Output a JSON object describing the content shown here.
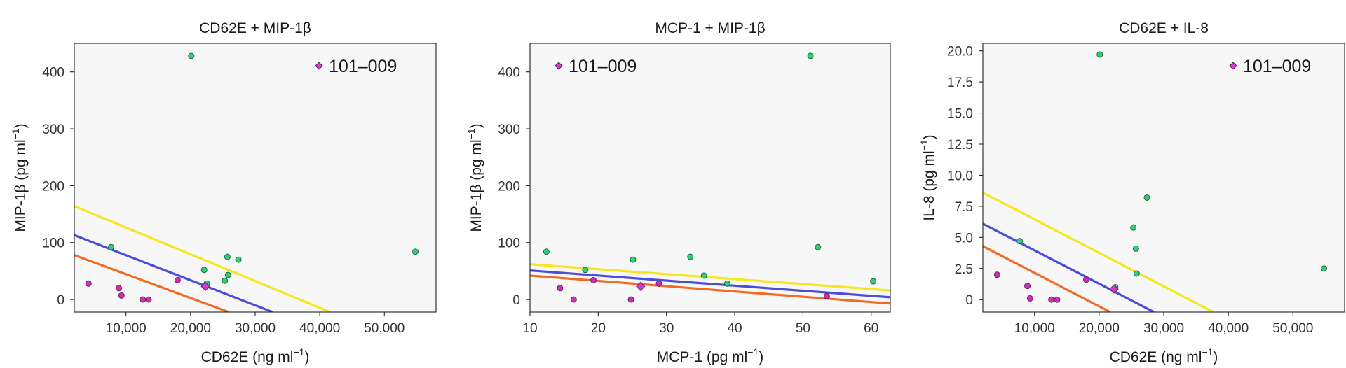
{
  "chart_data": [
    {
      "type": "scatter",
      "title": "CD62E + MIP-1β",
      "xlabel": "CD62E (ng ml",
      "xlabel_sup": "−1",
      "ylabel": "MIP-1β (pg ml",
      "ylabel_sup": "−1",
      "xlim": [
        2000,
        58000
      ],
      "ylim": [
        -22,
        450
      ],
      "xticks": [
        10000,
        20000,
        30000,
        40000,
        50000
      ],
      "xtick_labels": [
        "10,000",
        "20,000",
        "30,000",
        "40,000",
        "50,000"
      ],
      "yticks": [
        0,
        100,
        200,
        300,
        400
      ],
      "ytick_labels": [
        "0",
        "100",
        "200",
        "300",
        "400"
      ],
      "highlight_label": "101–009",
      "highlight": {
        "x": 22300,
        "y": 23
      },
      "green_points": [
        [
          7700,
          92
        ],
        [
          20100,
          428
        ],
        [
          22100,
          52
        ],
        [
          22500,
          28
        ],
        [
          25300,
          33
        ],
        [
          25700,
          75
        ],
        [
          25800,
          43
        ],
        [
          27400,
          70
        ],
        [
          54800,
          84
        ]
      ],
      "magenta_points": [
        [
          4200,
          28
        ],
        [
          8900,
          20
        ],
        [
          9300,
          7
        ],
        [
          12600,
          0
        ],
        [
          13500,
          0
        ],
        [
          18000,
          34
        ]
      ],
      "lines": [
        {
          "name": "yellow",
          "color": "#f5e61e",
          "x": [
            2000,
            41600
          ],
          "y": [
            164,
            -22
          ]
        },
        {
          "name": "blue",
          "color": "#4c4ed8",
          "x": [
            2000,
            32700
          ],
          "y": [
            113,
            -22
          ]
        },
        {
          "name": "orange",
          "color": "#f26b24",
          "x": [
            2000,
            25900
          ],
          "y": [
            78,
            -22
          ]
        }
      ]
    },
    {
      "type": "scatter",
      "title": "MCP-1 + MIP-1β",
      "xlabel": "MCP-1 (pg ml",
      "xlabel_sup": "−1",
      "ylabel": "MIP-1β (pg ml",
      "ylabel_sup": "−1",
      "xlim": [
        10,
        62.8
      ],
      "ylim": [
        -22,
        450
      ],
      "xticks": [
        10,
        20,
        30,
        40,
        50,
        60
      ],
      "xtick_labels": [
        "10",
        "20",
        "30",
        "40",
        "50",
        "60"
      ],
      "yticks": [
        0,
        100,
        200,
        300,
        400
      ],
      "ytick_labels": [
        "0",
        "100",
        "200",
        "300",
        "400"
      ],
      "highlight_label": "101–009",
      "highlight": {
        "x": 26.2,
        "y": 23
      },
      "green_points": [
        [
          12.4,
          84
        ],
        [
          18.1,
          52
        ],
        [
          25.1,
          70
        ],
        [
          33.5,
          75
        ],
        [
          35.5,
          42
        ],
        [
          38.9,
          28
        ],
        [
          51.1,
          428
        ],
        [
          52.2,
          92
        ],
        [
          60.3,
          32
        ]
      ],
      "magenta_points": [
        [
          14.4,
          20
        ],
        [
          16.4,
          0
        ],
        [
          19.3,
          34
        ],
        [
          24.8,
          0
        ],
        [
          28.9,
          28
        ],
        [
          53.5,
          6
        ]
      ],
      "lines": [
        {
          "name": "yellow",
          "color": "#f5e61e",
          "x": [
            10,
            62.8
          ],
          "y": [
            62,
            16
          ]
        },
        {
          "name": "blue",
          "color": "#4c4ed8",
          "x": [
            10,
            62.8
          ],
          "y": [
            51,
            4
          ]
        },
        {
          "name": "orange",
          "color": "#f26b24",
          "x": [
            10,
            62.8
          ],
          "y": [
            42,
            -7
          ]
        }
      ]
    },
    {
      "type": "scatter",
      "title": "CD62E + IL-8",
      "xlabel": "CD62E (ng ml",
      "xlabel_sup": "−1",
      "ylabel": "IL-8 (pg ml",
      "ylabel_sup": "−1",
      "xlim": [
        2000,
        58000
      ],
      "ylim": [
        -1,
        20.6
      ],
      "xticks": [
        10000,
        20000,
        30000,
        40000,
        50000
      ],
      "xtick_labels": [
        "10,000",
        "20,000",
        "30,000",
        "40,000",
        "50,000"
      ],
      "yticks": [
        0,
        2.5,
        5.0,
        7.5,
        10.0,
        12.5,
        15.0,
        17.5,
        20.0
      ],
      "ytick_labels": [
        "0",
        "2.5",
        "5.0",
        "7.5",
        "10.0",
        "12.5",
        "15.0",
        "17.5",
        "20.0"
      ],
      "highlight_label": "101–009",
      "highlight": {
        "x": 22300,
        "y": 0.85
      },
      "green_points": [
        [
          7700,
          4.7
        ],
        [
          20100,
          19.7
        ],
        [
          22500,
          1.0
        ],
        [
          25300,
          5.8
        ],
        [
          25700,
          4.1
        ],
        [
          25800,
          2.1
        ],
        [
          27400,
          8.2
        ],
        [
          54800,
          2.5
        ]
      ],
      "magenta_points": [
        [
          4200,
          2.0
        ],
        [
          8900,
          1.1
        ],
        [
          9300,
          0.1
        ],
        [
          12600,
          0
        ],
        [
          13500,
          0
        ],
        [
          18000,
          1.6
        ]
      ],
      "lines": [
        {
          "name": "yellow",
          "color": "#f5e61e",
          "x": [
            2000,
            37700
          ],
          "y": [
            8.6,
            -1
          ]
        },
        {
          "name": "blue",
          "color": "#4c4ed8",
          "x": [
            2000,
            28500
          ],
          "y": [
            6.1,
            -1
          ]
        },
        {
          "name": "orange",
          "color": "#f26b24",
          "x": [
            2000,
            21700
          ],
          "y": [
            4.3,
            -1
          ]
        }
      ]
    }
  ],
  "colors": {
    "green_point": "#2fcf7a",
    "magenta_point": "#cf2fb8",
    "highlight": "#d23ad0",
    "plot_bg": "#f7f7f7",
    "axis": "#222222"
  }
}
